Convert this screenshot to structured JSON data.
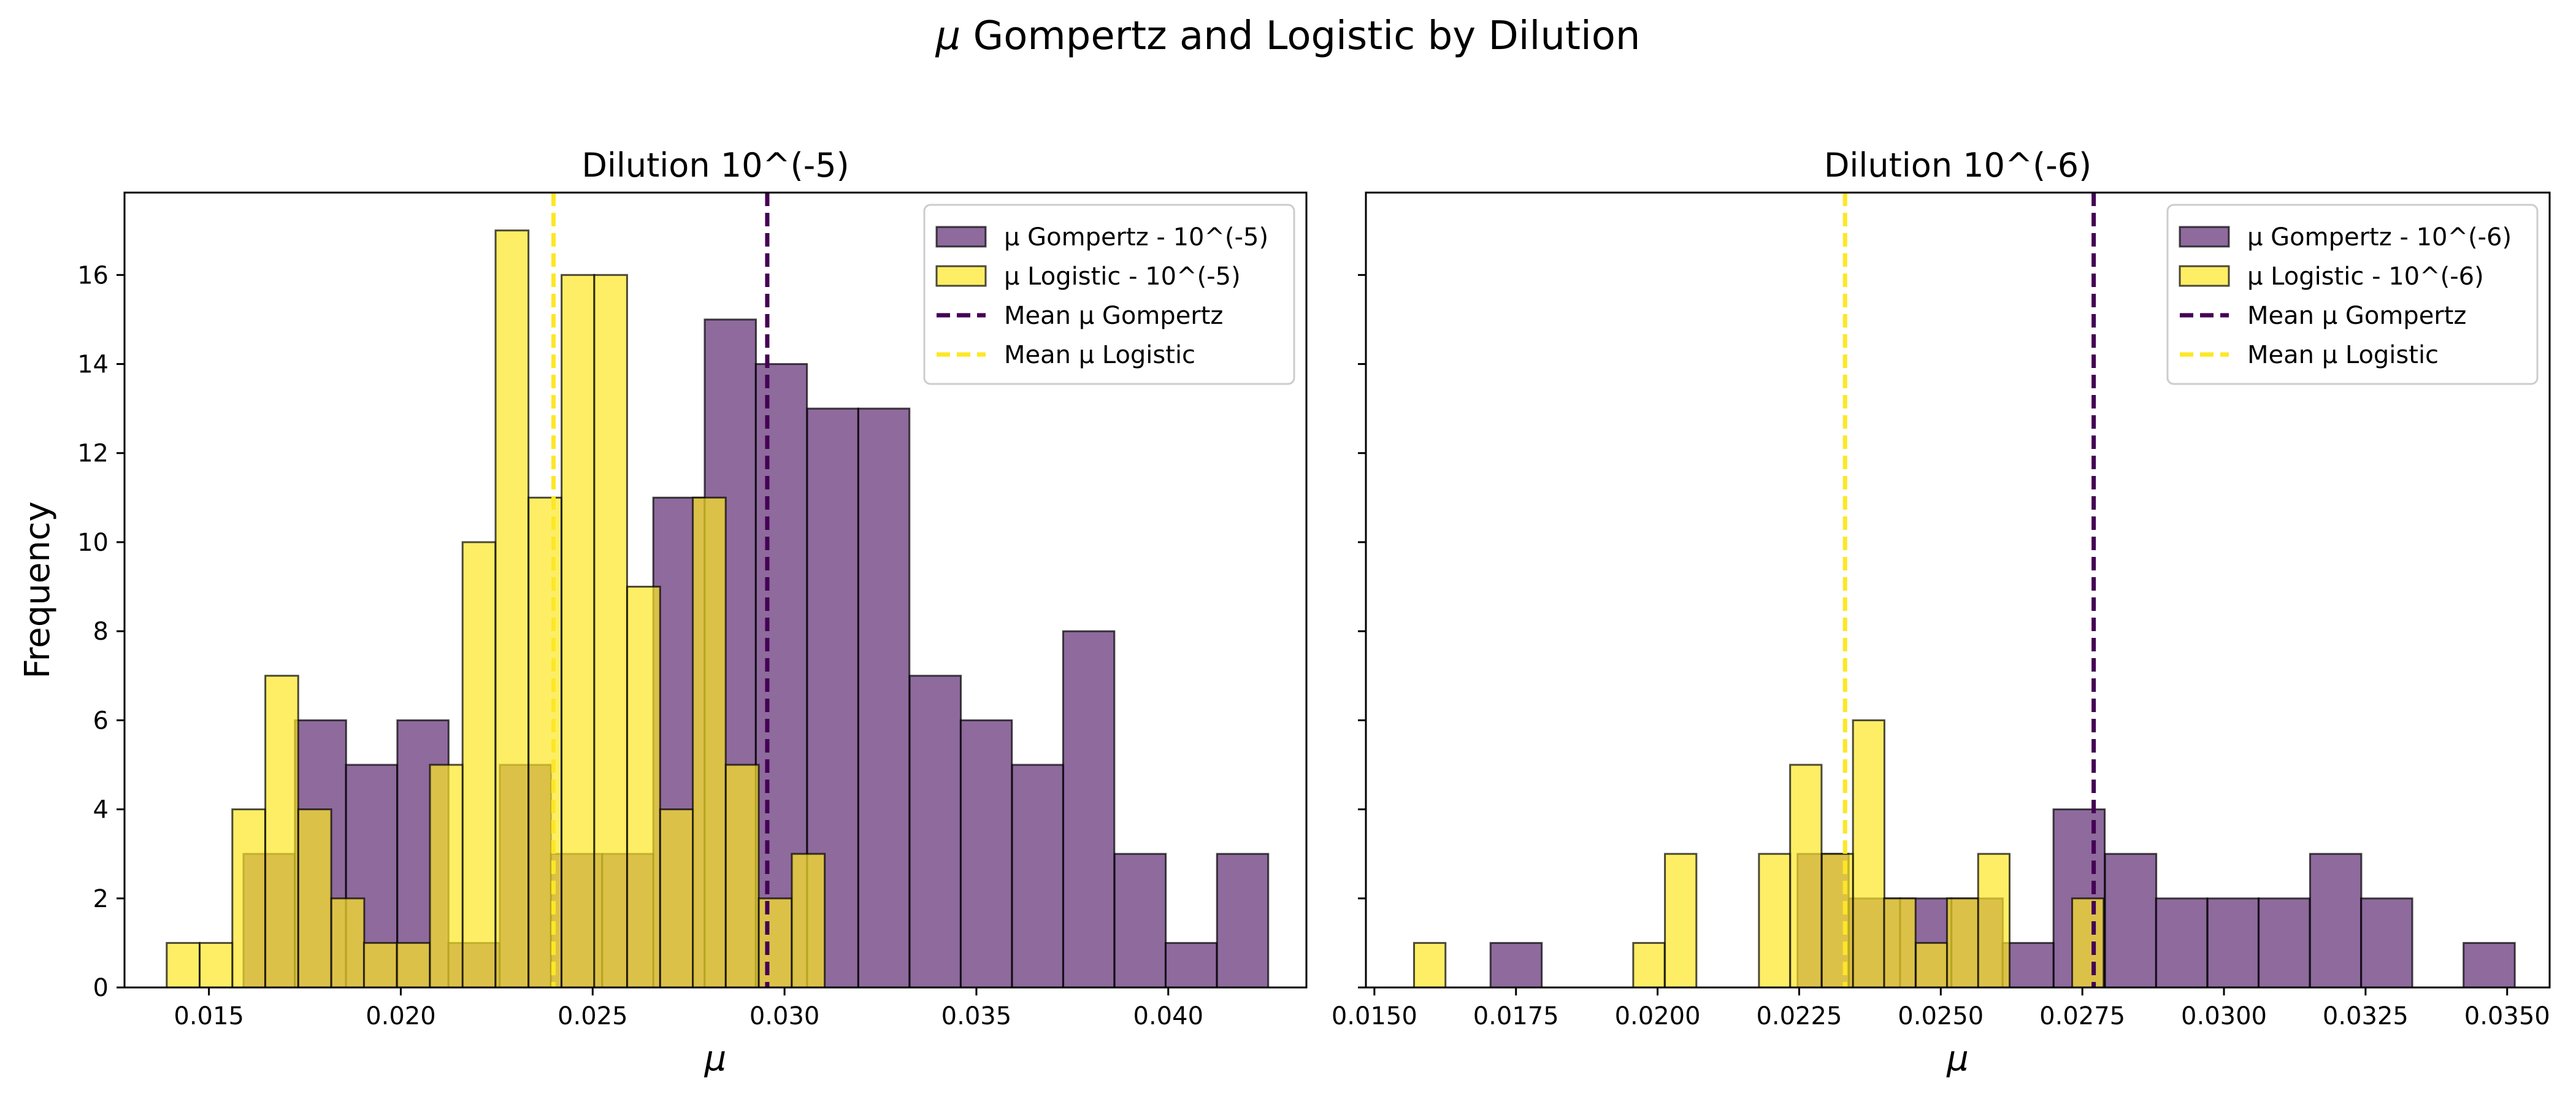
{
  "figure": {
    "suptitle_prefix": "μ",
    "suptitle_rest": " Gompertz and Logistic by Dilution"
  },
  "colors": {
    "gompertz_fill": "#5e2b74",
    "logistic_fill": "#fde725",
    "gompertz_mean": "#440154",
    "logistic_mean": "#fde725",
    "bar_edge": "#000000"
  },
  "chart_data": [
    {
      "type": "bar",
      "title": "Dilution 10^(-5)",
      "xlabel": "μ",
      "ylabel": "Frequency",
      "xlim": [
        0.0128,
        0.0436
      ],
      "ylim": [
        0,
        17.85
      ],
      "xticks": [
        0.015,
        0.02,
        0.025,
        0.03,
        0.035,
        0.04
      ],
      "xtick_labels": [
        "0.015",
        "0.020",
        "0.025",
        "0.030",
        "0.035",
        "0.040"
      ],
      "yticks": [
        0,
        2,
        4,
        6,
        8,
        10,
        12,
        14,
        16
      ],
      "ytick_labels": [
        "0",
        "2",
        "4",
        "6",
        "8",
        "10",
        "12",
        "14",
        "16"
      ],
      "legend_position": "top-right",
      "series": [
        {
          "name": "μ Gompertz - 10^(-5)",
          "bin_width": 0.001335,
          "bins": [
            {
              "x0": 0.0159,
              "count": 3
            },
            {
              "x0": 0.01724,
              "count": 6
            },
            {
              "x0": 0.01857,
              "count": 5
            },
            {
              "x0": 0.01991,
              "count": 6
            },
            {
              "x0": 0.02124,
              "count": 1
            },
            {
              "x0": 0.02258,
              "count": 5
            },
            {
              "x0": 0.02391,
              "count": 3
            },
            {
              "x0": 0.02525,
              "count": 3
            },
            {
              "x0": 0.02658,
              "count": 11
            },
            {
              "x0": 0.02792,
              "count": 15
            },
            {
              "x0": 0.02925,
              "count": 14
            },
            {
              "x0": 0.03059,
              "count": 13
            },
            {
              "x0": 0.03192,
              "count": 13
            },
            {
              "x0": 0.03326,
              "count": 7
            },
            {
              "x0": 0.03459,
              "count": 6
            },
            {
              "x0": 0.03593,
              "count": 5
            },
            {
              "x0": 0.03726,
              "count": 8
            },
            {
              "x0": 0.0386,
              "count": 3
            },
            {
              "x0": 0.03993,
              "count": 1
            },
            {
              "x0": 0.04127,
              "count": 3
            }
          ]
        },
        {
          "name": "μ Logistic - 10^(-5)",
          "bin_width": 0.000857,
          "bins": [
            {
              "x0": 0.0139,
              "count": 1
            },
            {
              "x0": 0.01476,
              "count": 1
            },
            {
              "x0": 0.01561,
              "count": 4
            },
            {
              "x0": 0.01647,
              "count": 7
            },
            {
              "x0": 0.01733,
              "count": 4
            },
            {
              "x0": 0.01819,
              "count": 2
            },
            {
              "x0": 0.01904,
              "count": 1
            },
            {
              "x0": 0.0199,
              "count": 1
            },
            {
              "x0": 0.02076,
              "count": 5
            },
            {
              "x0": 0.02161,
              "count": 10
            },
            {
              "x0": 0.02247,
              "count": 17
            },
            {
              "x0": 0.02333,
              "count": 11
            },
            {
              "x0": 0.02419,
              "count": 16
            },
            {
              "x0": 0.02504,
              "count": 16
            },
            {
              "x0": 0.0259,
              "count": 9
            },
            {
              "x0": 0.02676,
              "count": 4
            },
            {
              "x0": 0.02761,
              "count": 11
            },
            {
              "x0": 0.02847,
              "count": 5
            },
            {
              "x0": 0.02933,
              "count": 2
            },
            {
              "x0": 0.03019,
              "count": 3
            }
          ]
        }
      ],
      "mean_lines": [
        {
          "name": "Mean μ Gompertz",
          "x": 0.02955
        },
        {
          "name": "Mean μ Logistic",
          "x": 0.02398
        }
      ]
    },
    {
      "type": "bar",
      "title": "Dilution 10^(-6)",
      "xlabel": "μ",
      "ylabel": "",
      "xlim": [
        0.01485,
        0.03575
      ],
      "ylim": [
        0,
        17.85
      ],
      "xticks": [
        0.015,
        0.0175,
        0.02,
        0.0225,
        0.025,
        0.0275,
        0.03,
        0.0325,
        0.035
      ],
      "xtick_labels": [
        "0.0150",
        "0.0175",
        "0.0200",
        "0.0225",
        "0.0250",
        "0.0275",
        "0.0300",
        "0.0325",
        "0.0350"
      ],
      "yticks": [
        0,
        2,
        4,
        6,
        8,
        10,
        12,
        14,
        16
      ],
      "ytick_labels": [],
      "legend_position": "top-right",
      "series": [
        {
          "name": "μ Gompertz - 10^(-6)",
          "bin_width": 0.000905,
          "bins": [
            {
              "x0": 0.01705,
              "count": 1
            },
            {
              "x0": 0.02247,
              "count": 3
            },
            {
              "x0": 0.02338,
              "count": 2
            },
            {
              "x0": 0.02428,
              "count": 2
            },
            {
              "x0": 0.02519,
              "count": 2
            },
            {
              "x0": 0.02609,
              "count": 1
            },
            {
              "x0": 0.02699,
              "count": 4
            },
            {
              "x0": 0.0279,
              "count": 3
            },
            {
              "x0": 0.0288,
              "count": 2
            },
            {
              "x0": 0.02971,
              "count": 2
            },
            {
              "x0": 0.03061,
              "count": 2
            },
            {
              "x0": 0.03152,
              "count": 3
            },
            {
              "x0": 0.03242,
              "count": 2
            },
            {
              "x0": 0.03423,
              "count": 1
            }
          ]
        },
        {
          "name": "μ Logistic - 10^(-6)",
          "bin_width": 0.000555,
          "bins": [
            {
              "x0": 0.0157,
              "count": 1
            },
            {
              "x0": 0.01957,
              "count": 1
            },
            {
              "x0": 0.02013,
              "count": 3
            },
            {
              "x0": 0.02179,
              "count": 3
            },
            {
              "x0": 0.02234,
              "count": 5
            },
            {
              "x0": 0.0229,
              "count": 3
            },
            {
              "x0": 0.02345,
              "count": 6
            },
            {
              "x0": 0.024,
              "count": 2
            },
            {
              "x0": 0.02456,
              "count": 1
            },
            {
              "x0": 0.02511,
              "count": 2
            },
            {
              "x0": 0.02566,
              "count": 3
            },
            {
              "x0": 0.02732,
              "count": 2
            }
          ]
        }
      ],
      "mean_lines": [
        {
          "name": "Mean μ Gompertz",
          "x": 0.0277
        },
        {
          "name": "Mean μ Logistic",
          "x": 0.02331
        }
      ]
    }
  ]
}
